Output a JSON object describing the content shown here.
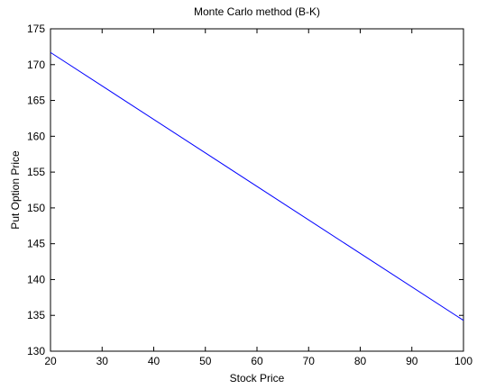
{
  "chart_data": {
    "type": "line",
    "title": "Monte Carlo method (B-K)",
    "xlabel": "Stock Price",
    "ylabel": "Put Option Price",
    "xlim": [
      20,
      100
    ],
    "ylim": [
      130,
      175
    ],
    "xticks": [
      20,
      30,
      40,
      50,
      60,
      70,
      80,
      90,
      100
    ],
    "yticks": [
      130,
      135,
      140,
      145,
      150,
      155,
      160,
      165,
      170,
      175
    ],
    "grid": false,
    "series": [
      {
        "color": "#0000ff",
        "x": [
          20,
          100
        ],
        "y": [
          171.7,
          134.3
        ]
      }
    ]
  }
}
